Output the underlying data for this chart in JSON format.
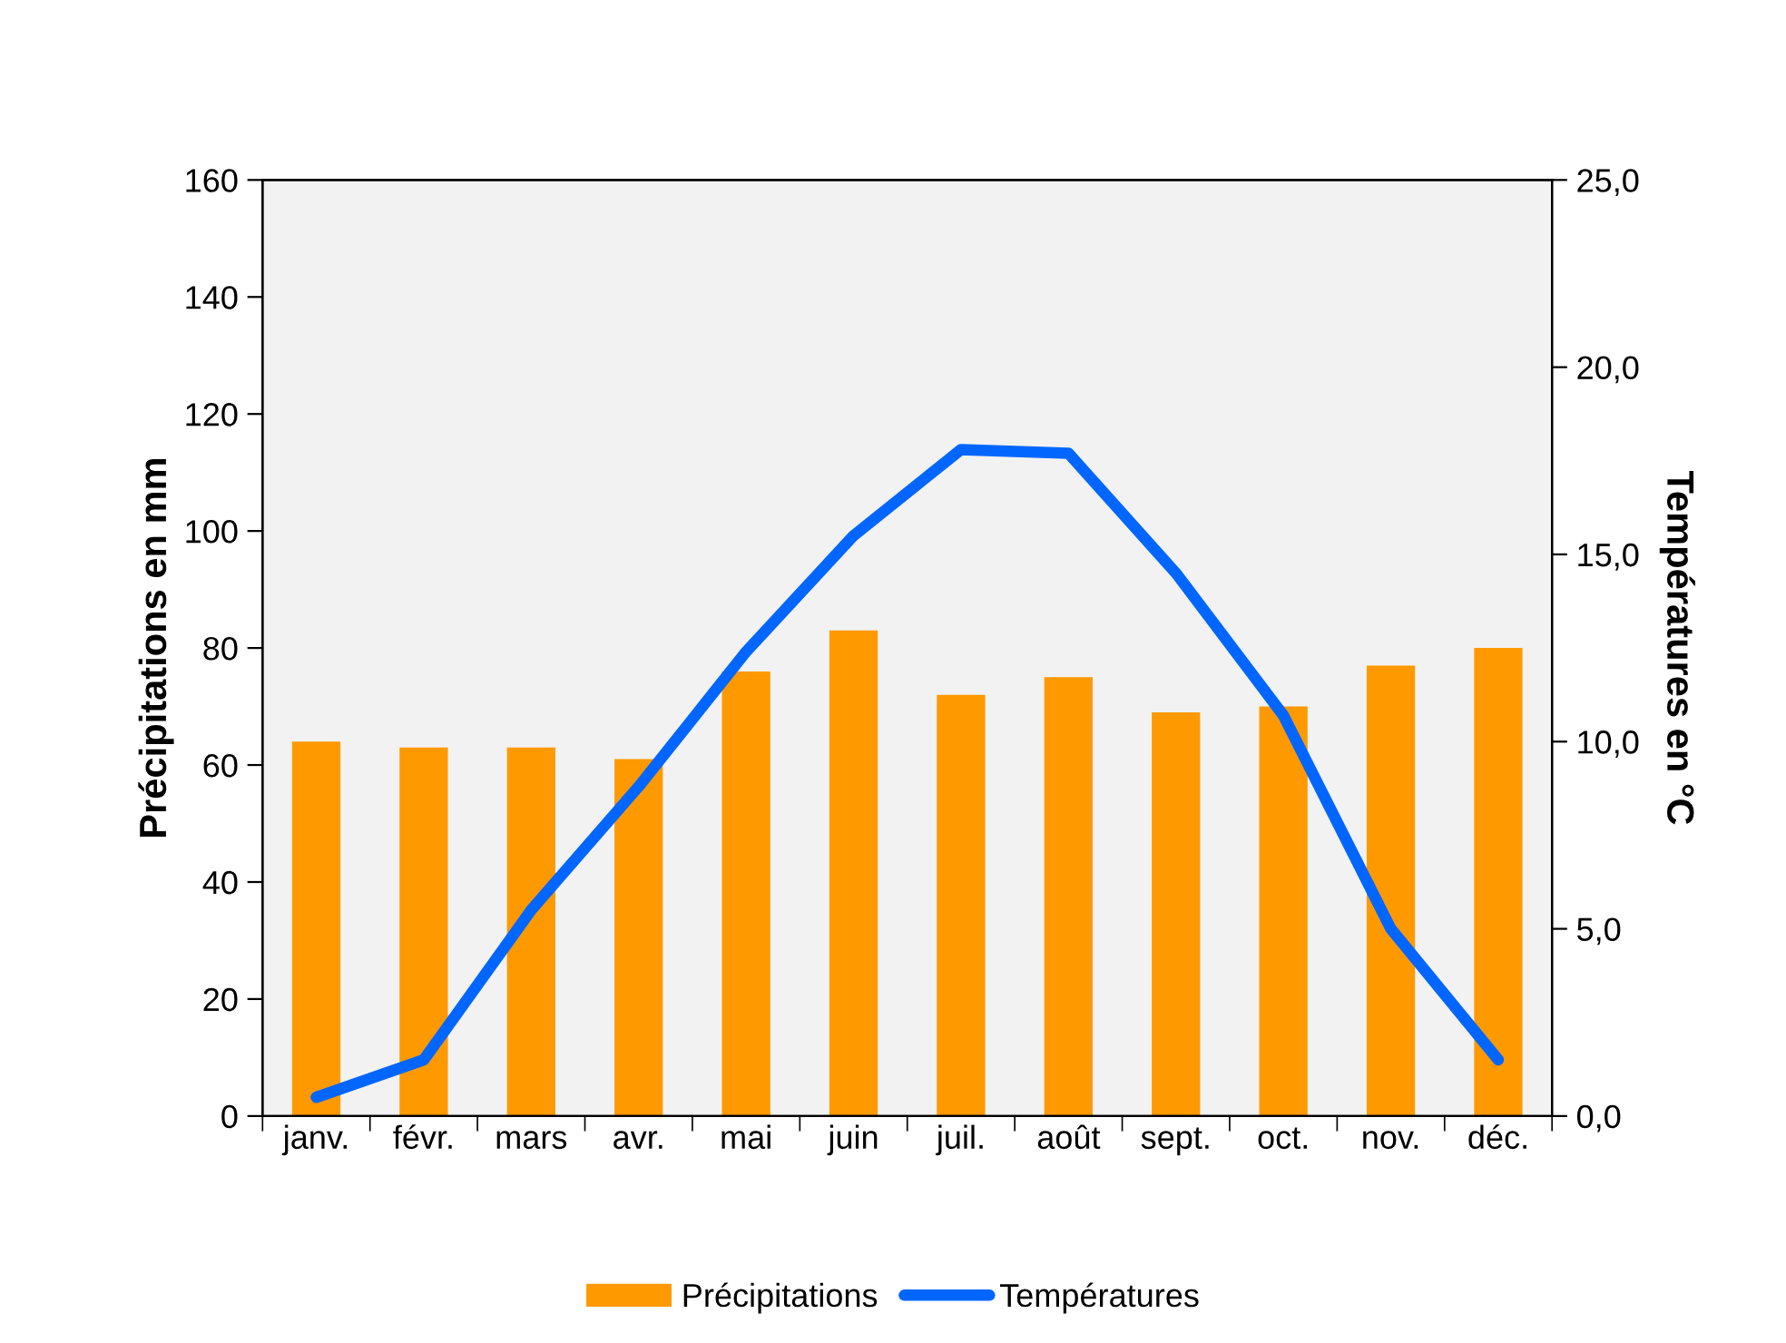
{
  "chart_data": {
    "type": "bar",
    "categories": [
      "janv.",
      "févr.",
      "mars",
      "avr.",
      "mai",
      "juin",
      "juil.",
      "août",
      "sept.",
      "oct.",
      "nov.",
      "déc."
    ],
    "series": [
      {
        "name": "Précipitations",
        "color": "#ff9900",
        "values": [
          64,
          63,
          63,
          61,
          76,
          83,
          72,
          75,
          69,
          70,
          77,
          80
        ]
      },
      {
        "name": "Températures",
        "color": "#0066ff",
        "type": "line",
        "axis": "y2",
        "values": [
          0.5,
          1.5,
          5.5,
          8.8,
          12.4,
          15.5,
          17.8,
          17.7,
          14.5,
          10.7,
          5.0,
          1.5
        ]
      }
    ],
    "ylabel": "Précipitations en mm",
    "y2label": "Températures en °C",
    "ylim": [
      0,
      160
    ],
    "yticks": [
      0,
      20,
      40,
      60,
      80,
      100,
      120,
      140,
      160
    ],
    "y2lim": [
      0,
      25
    ],
    "y2ticks": [
      {
        "value": 0,
        "label": "0,0"
      },
      {
        "value": 5,
        "label": "5,0"
      },
      {
        "value": 10,
        "label": "10,0"
      },
      {
        "value": 15,
        "label": "15,0"
      },
      {
        "value": 20,
        "label": "20,0"
      },
      {
        "value": 25,
        "label": "25,0"
      }
    ],
    "grid": false,
    "legend": "bottom",
    "marker": "none",
    "line_style": "solid"
  }
}
